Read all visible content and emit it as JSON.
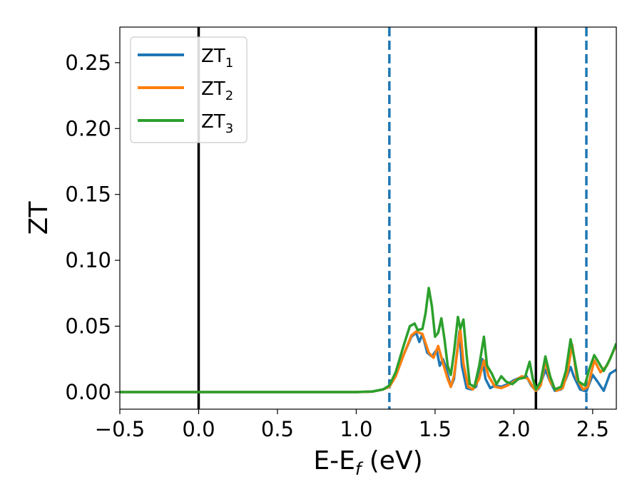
{
  "chart_data": {
    "type": "line",
    "title": "",
    "xlabel": "E-E",
    "xlabel_sub": "f",
    "xlabel_suffix": " (eV)",
    "ylabel": "ZT",
    "xlim": [
      -0.5,
      2.65
    ],
    "ylim": [
      -0.013,
      0.277
    ],
    "xticks": [
      -0.5,
      0.0,
      0.5,
      1.0,
      1.5,
      2.0,
      2.5
    ],
    "xtick_labels": [
      "−0.5",
      "0.0",
      "0.5",
      "1.0",
      "1.5",
      "2.0",
      "2.5"
    ],
    "yticks": [
      0.0,
      0.05,
      0.1,
      0.15,
      0.2,
      0.25
    ],
    "ytick_labels": [
      "0.00",
      "0.05",
      "0.10",
      "0.15",
      "0.20",
      "0.25"
    ],
    "grid": false,
    "legend": "top-left",
    "vlines": [
      {
        "x": 0.0,
        "style": "solid",
        "color": "#000000"
      },
      {
        "x": 2.14,
        "style": "solid",
        "color": "#000000"
      },
      {
        "x": 1.21,
        "style": "dashed",
        "color": "#1f77b4"
      },
      {
        "x": 2.46,
        "style": "dashed",
        "color": "#1f77b4"
      }
    ],
    "series": [
      {
        "name": "ZT",
        "sub": "1",
        "color": "#1f77b4",
        "points": [
          [
            -0.5,
            0
          ],
          [
            1.0,
            0
          ],
          [
            1.1,
            0.0003
          ],
          [
            1.17,
            0.002
          ],
          [
            1.21,
            0.004
          ],
          [
            1.25,
            0.012
          ],
          [
            1.3,
            0.028
          ],
          [
            1.35,
            0.042
          ],
          [
            1.38,
            0.045
          ],
          [
            1.4,
            0.038
          ],
          [
            1.42,
            0.044
          ],
          [
            1.45,
            0.03
          ],
          [
            1.48,
            0.027
          ],
          [
            1.51,
            0.032
          ],
          [
            1.53,
            0.02
          ],
          [
            1.55,
            0.025
          ],
          [
            1.57,
            0.018
          ],
          [
            1.6,
            0.004
          ],
          [
            1.62,
            0.01
          ],
          [
            1.655,
            0.046
          ],
          [
            1.67,
            0.02
          ],
          [
            1.7,
            0.003
          ],
          [
            1.73,
            0.002
          ],
          [
            1.76,
            0.004
          ],
          [
            1.8,
            0.025
          ],
          [
            1.82,
            0.01
          ],
          [
            1.85,
            0.003
          ],
          [
            1.88,
            0.005
          ],
          [
            1.92,
            0.004
          ],
          [
            1.96,
            0.006
          ],
          [
            2.0,
            0.009
          ],
          [
            2.04,
            0.011
          ],
          [
            2.08,
            0.012
          ],
          [
            2.11,
            0.005
          ],
          [
            2.14,
            0.001
          ],
          [
            2.16,
            0.003
          ],
          [
            2.2,
            0.017
          ],
          [
            2.23,
            0.008
          ],
          [
            2.26,
            0.001
          ],
          [
            2.3,
            0.002
          ],
          [
            2.33,
            0.01
          ],
          [
            2.36,
            0.019
          ],
          [
            2.38,
            0.012
          ],
          [
            2.42,
            0.002
          ],
          [
            2.46,
            0.0005
          ],
          [
            2.5,
            0.013
          ],
          [
            2.53,
            0.008
          ],
          [
            2.57,
            0.001
          ],
          [
            2.61,
            0.014
          ],
          [
            2.65,
            0.017
          ]
        ]
      },
      {
        "name": "ZT",
        "sub": "2",
        "color": "#ff7f0e",
        "points": [
          [
            -0.5,
            0
          ],
          [
            1.0,
            0
          ],
          [
            1.1,
            0.0003
          ],
          [
            1.17,
            0.002
          ],
          [
            1.21,
            0.004
          ],
          [
            1.25,
            0.012
          ],
          [
            1.3,
            0.028
          ],
          [
            1.35,
            0.043
          ],
          [
            1.38,
            0.046
          ],
          [
            1.42,
            0.044
          ],
          [
            1.46,
            0.03
          ],
          [
            1.49,
            0.026
          ],
          [
            1.52,
            0.035
          ],
          [
            1.55,
            0.022
          ],
          [
            1.58,
            0.01
          ],
          [
            1.6,
            0.004
          ],
          [
            1.62,
            0.012
          ],
          [
            1.66,
            0.048
          ],
          [
            1.68,
            0.022
          ],
          [
            1.71,
            0.004
          ],
          [
            1.74,
            0.002
          ],
          [
            1.78,
            0.01
          ],
          [
            1.81,
            0.024
          ],
          [
            1.84,
            0.012
          ],
          [
            1.88,
            0.004
          ],
          [
            1.92,
            0.003
          ],
          [
            1.96,
            0.005
          ],
          [
            2.0,
            0.008
          ],
          [
            2.05,
            0.012
          ],
          [
            2.09,
            0.01
          ],
          [
            2.12,
            0.004
          ],
          [
            2.14,
            0.001
          ],
          [
            2.17,
            0.005
          ],
          [
            2.2,
            0.024
          ],
          [
            2.23,
            0.008
          ],
          [
            2.27,
            0.001
          ],
          [
            2.31,
            0.003
          ],
          [
            2.34,
            0.015
          ],
          [
            2.37,
            0.036
          ],
          [
            2.4,
            0.01
          ],
          [
            2.44,
            0.002
          ],
          [
            2.47,
            0.004
          ],
          [
            2.51,
            0.024
          ],
          [
            2.55,
            0.015
          ],
          [
            2.59,
            0.02
          ],
          [
            2.65,
            0.036
          ]
        ]
      },
      {
        "name": "ZT",
        "sub": "3",
        "color": "#2ca02c",
        "points": [
          [
            -0.5,
            0
          ],
          [
            1.0,
            0
          ],
          [
            1.1,
            0.0004
          ],
          [
            1.17,
            0.002
          ],
          [
            1.21,
            0.005
          ],
          [
            1.25,
            0.015
          ],
          [
            1.3,
            0.035
          ],
          [
            1.34,
            0.05
          ],
          [
            1.37,
            0.052
          ],
          [
            1.39,
            0.047
          ],
          [
            1.42,
            0.048
          ],
          [
            1.44,
            0.06
          ],
          [
            1.46,
            0.079
          ],
          [
            1.48,
            0.065
          ],
          [
            1.5,
            0.042
          ],
          [
            1.52,
            0.045
          ],
          [
            1.54,
            0.056
          ],
          [
            1.56,
            0.04
          ],
          [
            1.58,
            0.02
          ],
          [
            1.6,
            0.013
          ],
          [
            1.62,
            0.03
          ],
          [
            1.645,
            0.057
          ],
          [
            1.66,
            0.048
          ],
          [
            1.68,
            0.055
          ],
          [
            1.7,
            0.028
          ],
          [
            1.72,
            0.006
          ],
          [
            1.75,
            0.004
          ],
          [
            1.78,
            0.02
          ],
          [
            1.81,
            0.042
          ],
          [
            1.83,
            0.02
          ],
          [
            1.86,
            0.014
          ],
          [
            1.89,
            0.006
          ],
          [
            1.92,
            0.012
          ],
          [
            1.95,
            0.008
          ],
          [
            1.99,
            0.006
          ],
          [
            2.03,
            0.01
          ],
          [
            2.07,
            0.011
          ],
          [
            2.1,
            0.023
          ],
          [
            2.12,
            0.01
          ],
          [
            2.14,
            0.002
          ],
          [
            2.17,
            0.008
          ],
          [
            2.2,
            0.027
          ],
          [
            2.23,
            0.012
          ],
          [
            2.26,
            0.002
          ],
          [
            2.3,
            0.004
          ],
          [
            2.33,
            0.016
          ],
          [
            2.36,
            0.04
          ],
          [
            2.38,
            0.028
          ],
          [
            2.41,
            0.008
          ],
          [
            2.45,
            0.005
          ],
          [
            2.48,
            0.018
          ],
          [
            2.51,
            0.028
          ],
          [
            2.54,
            0.022
          ],
          [
            2.57,
            0.016
          ],
          [
            2.61,
            0.025
          ],
          [
            2.65,
            0.037
          ]
        ]
      }
    ]
  }
}
